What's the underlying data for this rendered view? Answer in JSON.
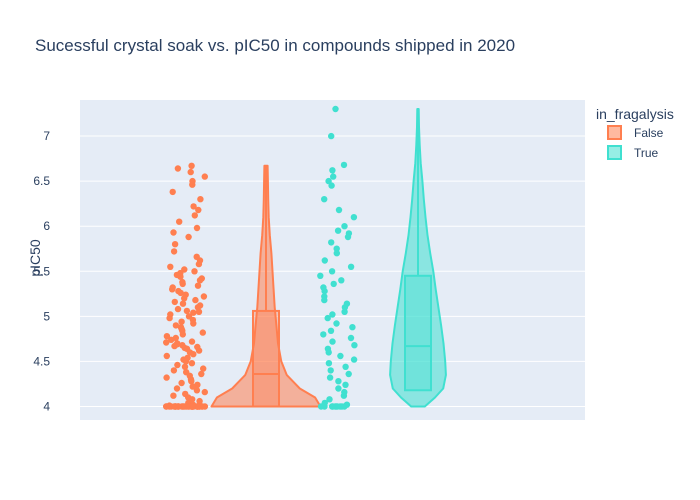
{
  "chart_data": {
    "type": "violin",
    "title": "Sucessful crystal soak vs. pIC50 in compounds shipped in 2020",
    "xlabel": "",
    "ylabel": "pIC50",
    "ylim": [
      3.85,
      7.4
    ],
    "y_ticks": [
      "4",
      "4.5",
      "5",
      "5.5",
      "6",
      "6.5",
      "7"
    ],
    "grid": true,
    "legend": {
      "title": "in_fragalysis",
      "position": "top-right"
    },
    "series": [
      {
        "name": "False",
        "color": "#ff7f50",
        "box": {
          "min": 4.0,
          "q1": 4.0,
          "median": 4.36,
          "q3": 5.06,
          "max": 6.67
        },
        "kde_profile": [
          [
            4.0,
            1.0
          ],
          [
            4.1,
            0.9
          ],
          [
            4.2,
            0.62
          ],
          [
            4.35,
            0.38
          ],
          [
            4.5,
            0.28
          ],
          [
            4.7,
            0.22
          ],
          [
            4.9,
            0.19
          ],
          [
            5.1,
            0.16
          ],
          [
            5.3,
            0.14
          ],
          [
            5.5,
            0.12
          ],
          [
            5.7,
            0.1
          ],
          [
            5.9,
            0.07
          ],
          [
            6.1,
            0.05
          ],
          [
            6.3,
            0.04
          ],
          [
            6.5,
            0.035
          ],
          [
            6.67,
            0.03
          ]
        ],
        "points": [
          6.67,
          6.64,
          6.6,
          6.55,
          6.5,
          6.46,
          6.38,
          6.3,
          6.22,
          6.18,
          6.12,
          6.05,
          5.98,
          5.93,
          5.88,
          5.8,
          5.72,
          5.66,
          5.62,
          5.58,
          5.55,
          5.52,
          5.5,
          5.48,
          5.46,
          5.44,
          5.42,
          5.4,
          5.38,
          5.36,
          5.34,
          5.32,
          5.3,
          5.28,
          5.26,
          5.24,
          5.22,
          5.2,
          5.18,
          5.16,
          5.14,
          5.12,
          5.1,
          5.08,
          5.06,
          5.05,
          5.04,
          5.02,
          5.0,
          4.98,
          4.96,
          4.94,
          4.92,
          4.9,
          4.88,
          4.86,
          4.84,
          4.82,
          4.8,
          4.78,
          4.76,
          4.74,
          4.72,
          4.71,
          4.7,
          4.69,
          4.68,
          4.67,
          4.66,
          4.65,
          4.64,
          4.62,
          4.6,
          4.58,
          4.56,
          4.54,
          4.52,
          4.5,
          4.48,
          4.46,
          4.44,
          4.42,
          4.4,
          4.38,
          4.36,
          4.34,
          4.32,
          4.3,
          4.28,
          4.26,
          4.24,
          4.22,
          4.2,
          4.18,
          4.16,
          4.14,
          4.12,
          4.1,
          4.08,
          4.06,
          4.04,
          4.02,
          4.01,
          4.0,
          4.0,
          4.0,
          4.0,
          4.0,
          4.0,
          4.0,
          4.0,
          4.0,
          4.0,
          4.0,
          4.0,
          4.0,
          4.0,
          4.0,
          4.0,
          4.0,
          4.0,
          4.0,
          4.0,
          4.0,
          4.0,
          4.0,
          4.0,
          4.0,
          4.0,
          4.0,
          4.0,
          4.0,
          4.0,
          4.0,
          4.0,
          4.0,
          4.0
        ]
      },
      {
        "name": "True",
        "color": "#40e0d0",
        "box": {
          "min": 4.0,
          "q1": 4.18,
          "median": 4.67,
          "q3": 5.45,
          "max": 7.3
        },
        "kde_profile": [
          [
            4.0,
            0.2
          ],
          [
            4.1,
            0.5
          ],
          [
            4.2,
            0.74
          ],
          [
            4.35,
            0.82
          ],
          [
            4.5,
            0.8
          ],
          [
            4.7,
            0.75
          ],
          [
            4.9,
            0.68
          ],
          [
            5.1,
            0.6
          ],
          [
            5.3,
            0.52
          ],
          [
            5.5,
            0.45
          ],
          [
            5.7,
            0.36
          ],
          [
            5.9,
            0.28
          ],
          [
            6.1,
            0.22
          ],
          [
            6.3,
            0.17
          ],
          [
            6.5,
            0.13
          ],
          [
            6.7,
            0.08
          ],
          [
            6.9,
            0.05
          ],
          [
            7.1,
            0.03
          ],
          [
            7.3,
            0.02
          ]
        ],
        "points": [
          7.3,
          7.0,
          6.68,
          6.62,
          6.55,
          6.5,
          6.45,
          6.3,
          6.18,
          6.1,
          6.0,
          5.95,
          5.92,
          5.88,
          5.82,
          5.75,
          5.7,
          5.62,
          5.55,
          5.5,
          5.45,
          5.4,
          5.36,
          5.32,
          5.28,
          5.22,
          5.18,
          5.14,
          5.1,
          5.05,
          5.02,
          4.98,
          4.92,
          4.88,
          4.84,
          4.8,
          4.76,
          4.72,
          4.68,
          4.64,
          4.6,
          4.56,
          4.52,
          4.48,
          4.44,
          4.4,
          4.36,
          4.32,
          4.28,
          4.24,
          4.2,
          4.16,
          4.12,
          4.08,
          4.04,
          4.02,
          4.0,
          4.0,
          4.0,
          4.0,
          4.0,
          4.0,
          4.0,
          4.0,
          4.0,
          4.0
        ]
      }
    ]
  }
}
